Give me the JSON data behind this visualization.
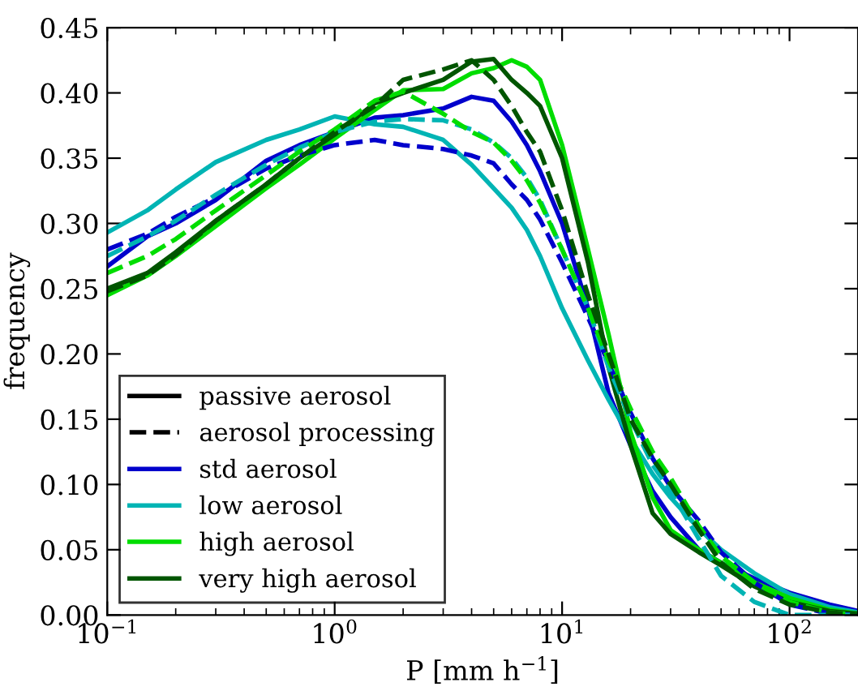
{
  "chart_data": {
    "type": "line",
    "xlabel": "P [mm h$^{−1}$]",
    "ylabel": "frequency",
    "log": "x",
    "xlim": [
      0.1,
      200
    ],
    "ylim": [
      0,
      0.45
    ],
    "xticks": [
      {
        "value": 0.1,
        "label": "10$^{−1}$"
      },
      {
        "value": 1,
        "label": "10$^{0}$"
      },
      {
        "value": 10,
        "label": "10$^{1}$"
      },
      {
        "value": 100,
        "label": "10$^{2}$"
      }
    ],
    "yticks": [
      {
        "value": 0,
        "label": "0.00"
      },
      {
        "value": 0.05,
        "label": "0.05"
      },
      {
        "value": 0.1,
        "label": "0.10"
      },
      {
        "value": 0.15,
        "label": "0.15"
      },
      {
        "value": 0.2,
        "label": "0.20"
      },
      {
        "value": 0.25,
        "label": "0.25"
      },
      {
        "value": 0.3,
        "label": "0.30"
      },
      {
        "value": 0.35,
        "label": "0.35"
      },
      {
        "value": 0.4,
        "label": "0.40"
      },
      {
        "value": 0.45,
        "label": "0.45"
      }
    ],
    "x": [
      0.1,
      0.15,
      0.2,
      0.3,
      0.5,
      0.7,
      1,
      1.5,
      2,
      3,
      4,
      5,
      6,
      7,
      8,
      10,
      13,
      16,
      20,
      25,
      30,
      40,
      50,
      70,
      100,
      150,
      200
    ],
    "grid": false,
    "legend": "bottom left",
    "marker": "none",
    "series": [
      {
        "name": "passive aerosol",
        "color": "#000000",
        "line_style": "solid",
        "values": [
          null,
          null,
          null,
          null,
          null,
          null,
          null,
          null,
          null,
          null,
          null,
          null,
          null,
          null,
          null,
          null,
          null,
          null,
          null,
          null,
          null,
          null,
          null,
          null,
          null,
          null,
          null
        ]
      },
      {
        "name": "aerosol processing",
        "color": "#000000",
        "line_style": "dashed",
        "values": [
          null,
          null,
          null,
          null,
          null,
          null,
          null,
          null,
          null,
          null,
          null,
          null,
          null,
          null,
          null,
          null,
          null,
          null,
          null,
          null,
          null,
          null,
          null,
          null,
          null,
          null,
          null
        ]
      },
      {
        "name": "std aerosol",
        "color": "#0000cc",
        "line_style": "solid",
        "values": [
          0.267,
          0.29,
          0.3,
          0.318,
          0.348,
          0.36,
          0.37,
          0.381,
          0.383,
          0.388,
          0.397,
          0.394,
          0.378,
          0.36,
          0.34,
          0.3,
          0.235,
          0.17,
          0.13,
          0.095,
          0.075,
          0.05,
          0.04,
          0.028,
          0.017,
          0.008,
          0.003
        ]
      },
      {
        "name": "low aerosol",
        "color": "#00b4b4",
        "line_style": "solid",
        "values": [
          0.293,
          0.31,
          0.326,
          0.347,
          0.364,
          0.372,
          0.382,
          0.376,
          0.374,
          0.364,
          0.345,
          0.327,
          0.312,
          0.295,
          0.275,
          0.235,
          0.195,
          0.165,
          0.135,
          0.108,
          0.09,
          0.066,
          0.05,
          0.032,
          0.016,
          0.006,
          0.002
        ]
      },
      {
        "name": "high aerosol",
        "color": "#00dd00",
        "line_style": "solid",
        "values": [
          0.245,
          0.26,
          0.275,
          0.298,
          0.327,
          0.345,
          0.365,
          0.387,
          0.402,
          0.403,
          0.415,
          0.419,
          0.425,
          0.42,
          0.41,
          0.36,
          0.28,
          0.215,
          0.14,
          0.09,
          0.065,
          0.05,
          0.04,
          0.025,
          0.013,
          0.004,
          0.001
        ]
      },
      {
        "name": "very high aerosol",
        "color": "#005500",
        "line_style": "solid",
        "values": [
          0.25,
          0.262,
          0.278,
          0.302,
          0.33,
          0.35,
          0.368,
          0.392,
          0.4,
          0.41,
          0.424,
          0.426,
          0.41,
          0.4,
          0.39,
          0.35,
          0.27,
          0.19,
          0.13,
          0.078,
          0.062,
          0.048,
          0.038,
          0.022,
          0.01,
          0.003,
          0.001
        ]
      },
      {
        "color": "#0000cc",
        "line_style": "dashed",
        "values": [
          0.28,
          0.292,
          0.305,
          0.32,
          0.342,
          0.352,
          0.36,
          0.364,
          0.36,
          0.357,
          0.352,
          0.346,
          0.33,
          0.318,
          0.303,
          0.27,
          0.228,
          0.193,
          0.155,
          0.12,
          0.098,
          0.072,
          0.048,
          0.025,
          0.008,
          0.001,
          0.0
        ]
      },
      {
        "color": "#00b4b4",
        "line_style": "dashed",
        "values": [
          0.275,
          0.29,
          0.302,
          0.322,
          0.345,
          0.358,
          0.37,
          0.378,
          0.38,
          0.379,
          0.372,
          0.362,
          0.35,
          0.335,
          0.318,
          0.28,
          0.235,
          0.19,
          0.15,
          0.115,
          0.095,
          0.058,
          0.03,
          0.01,
          0.0,
          0.0,
          0.0
        ]
      },
      {
        "color": "#00dd00",
        "line_style": "dashed",
        "values": [
          0.262,
          0.275,
          0.288,
          0.31,
          0.337,
          0.355,
          0.372,
          0.394,
          0.401,
          0.384,
          0.37,
          0.362,
          0.348,
          0.333,
          0.316,
          0.28,
          0.235,
          0.195,
          0.158,
          0.125,
          0.105,
          0.068,
          0.045,
          0.025,
          0.01,
          0.002,
          0.0
        ]
      },
      {
        "color": "#005500",
        "line_style": "dashed",
        "values": [
          0.248,
          0.26,
          0.276,
          0.302,
          0.33,
          0.35,
          0.37,
          0.39,
          0.41,
          0.418,
          0.425,
          0.41,
          0.39,
          0.37,
          0.355,
          0.31,
          0.245,
          0.2,
          0.15,
          0.12,
          0.1,
          0.065,
          0.04,
          0.02,
          0.008,
          0.002,
          0.0
        ]
      }
    ]
  }
}
